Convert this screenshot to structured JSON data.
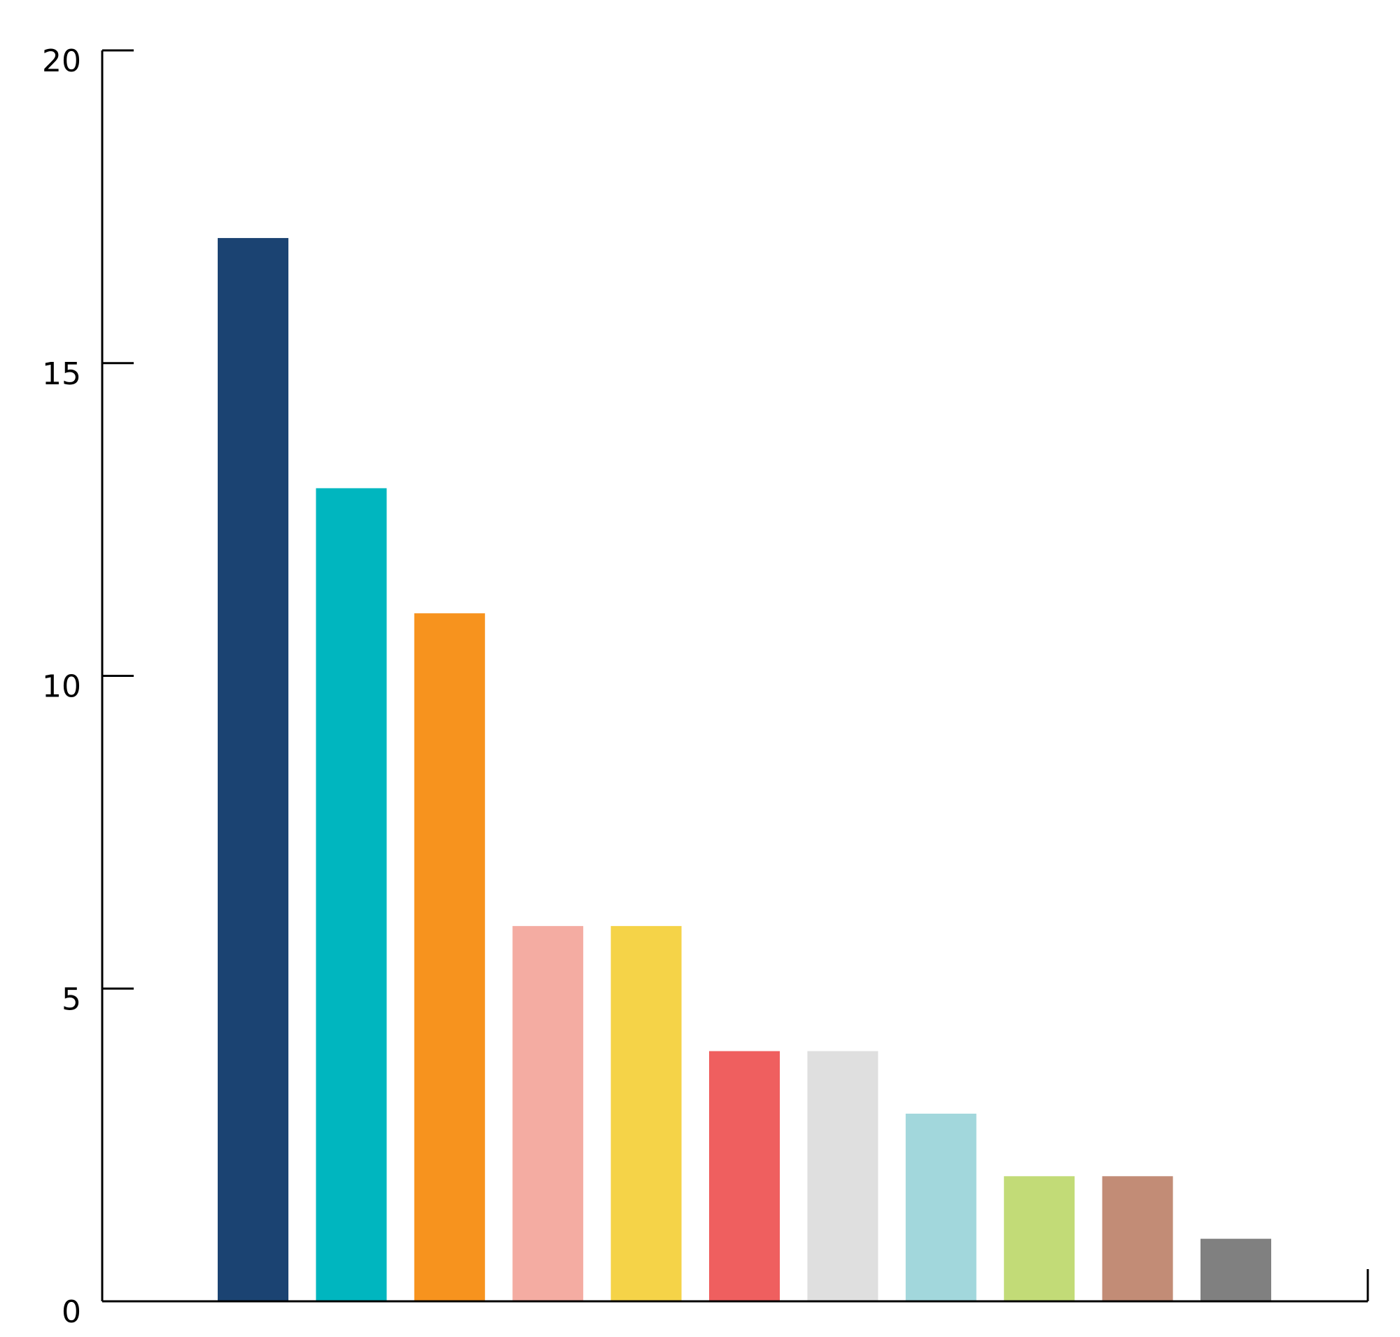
{
  "chart_data": {
    "type": "bar",
    "title": "",
    "xlabel": "",
    "ylabel": "",
    "ylim": [
      0,
      20
    ],
    "yticks": [
      "0",
      "5",
      "10",
      "15",
      "20"
    ],
    "grid": false,
    "values": [
      17,
      13,
      11,
      6,
      6,
      4,
      4,
      3,
      2,
      2,
      1
    ],
    "colors": [
      "#1b4372",
      "#00b6bf",
      "#f7931e",
      "#f4aca2",
      "#f5d348",
      "#ef5f5f",
      "#dfdfdf",
      "#a2d7dc",
      "#c2db77",
      "#c28c76",
      "#808080"
    ]
  }
}
